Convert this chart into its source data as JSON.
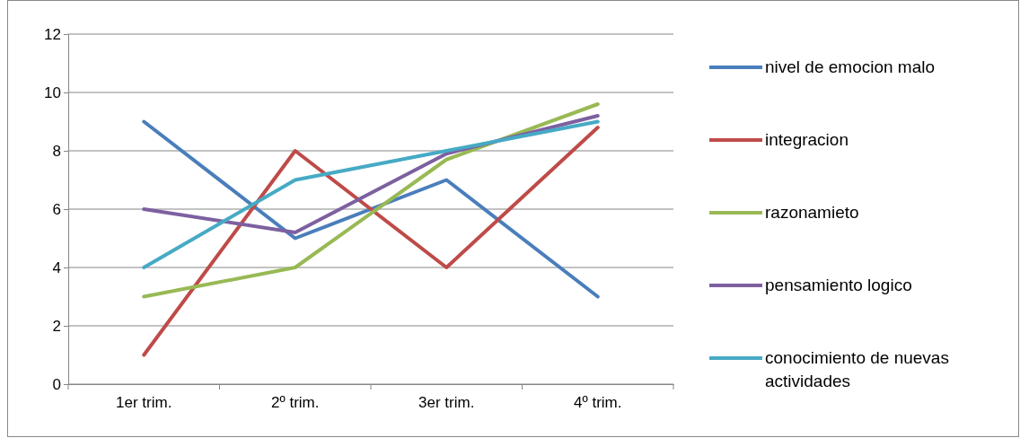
{
  "chart_data": {
    "type": "line",
    "categories": [
      "1er trim.",
      "2º trim.",
      "3er trim.",
      "4º trim."
    ],
    "series": [
      {
        "name": "nivel de emocion malo",
        "color": "#4a7ebb",
        "values": [
          9,
          5,
          7,
          3
        ]
      },
      {
        "name": "integracion",
        "color": "#be4b48",
        "values": [
          1,
          8,
          4,
          8.8
        ]
      },
      {
        "name": "razonamieto",
        "color": "#98b954",
        "values": [
          3,
          4,
          7.7,
          9.6
        ]
      },
      {
        "name": "pensamiento logico",
        "color": "#7d60a0",
        "values": [
          6,
          5.2,
          7.9,
          9.2
        ]
      },
      {
        "name": "conocimiento de nuevas actividades",
        "color": "#46aac5",
        "values": [
          4,
          7,
          8,
          9
        ]
      }
    ],
    "ylim": [
      0,
      12
    ],
    "yticks": [
      0,
      2,
      4,
      6,
      8,
      10,
      12
    ],
    "grid": "y",
    "legend": "right",
    "marker": "none",
    "line_style": "solid"
  }
}
